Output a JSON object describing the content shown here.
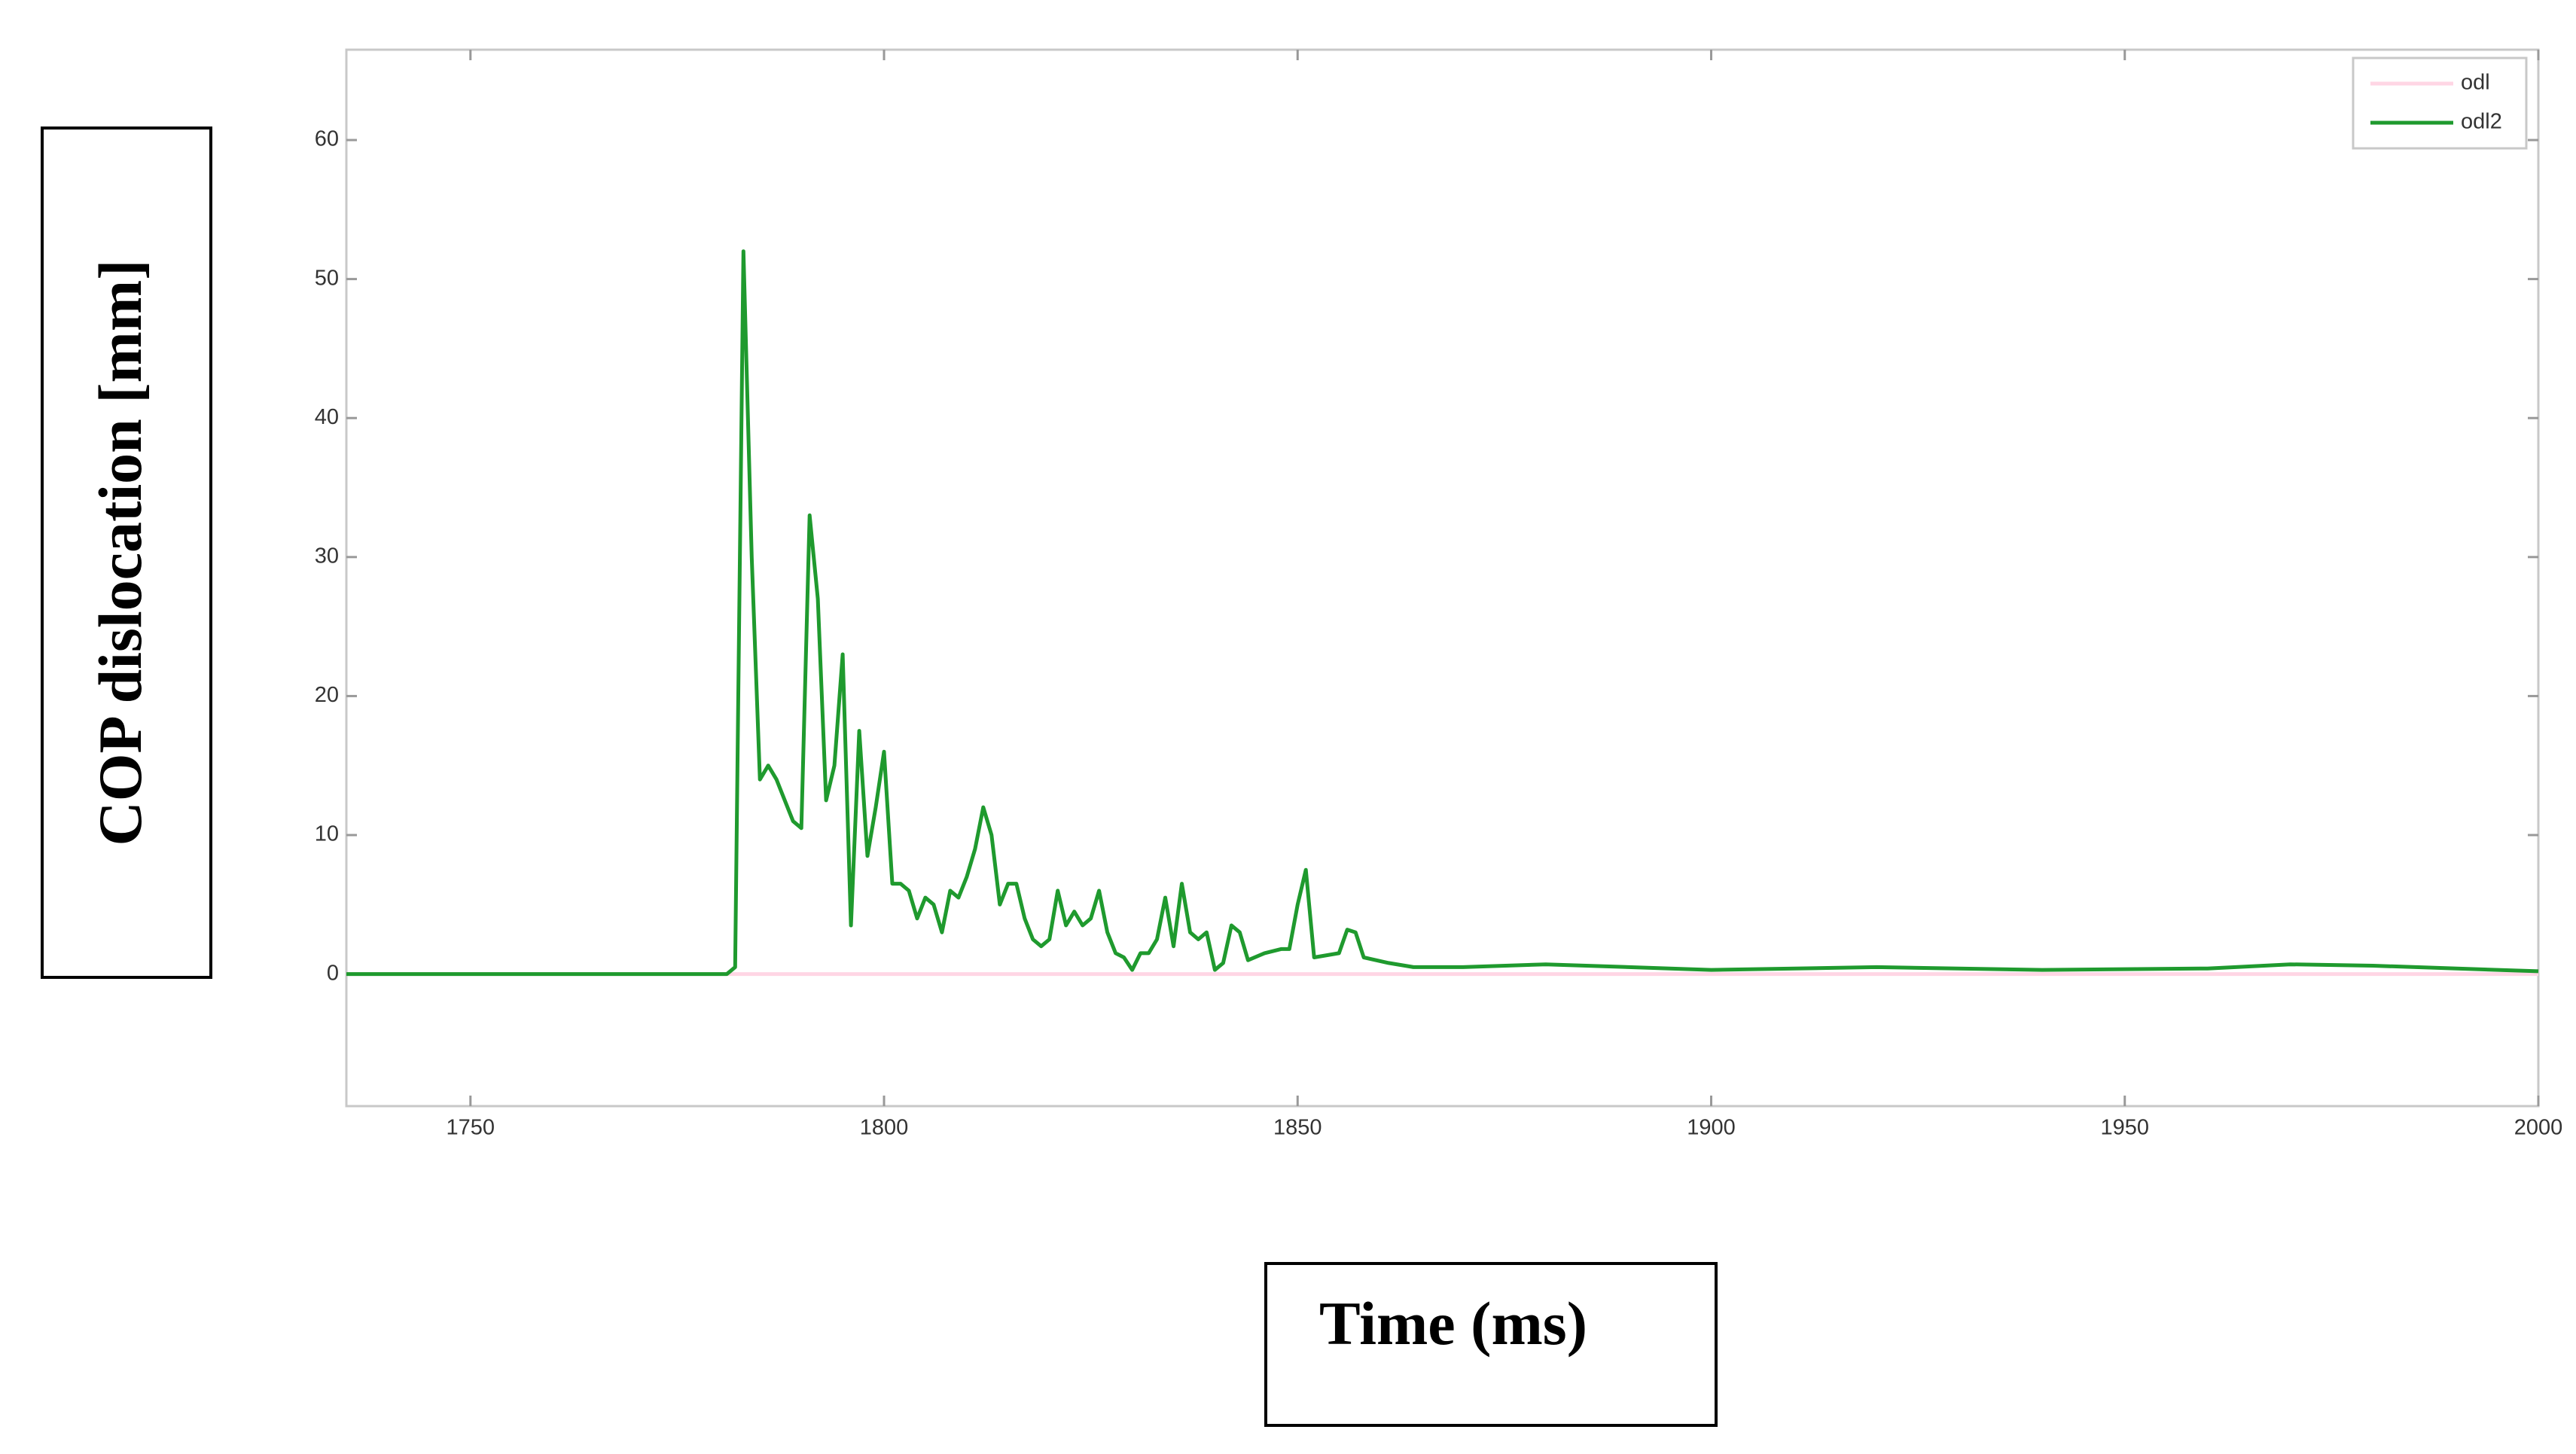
{
  "chart_data": {
    "type": "line",
    "xlabel": "Time (ms)",
    "ylabel": "COP dislocation  [mm]",
    "xlim": [
      1735,
      2000
    ],
    "xticks": [
      1750,
      1800,
      1850,
      1900,
      1950,
      2000
    ],
    "ylim": [
      -9.5,
      66.5
    ],
    "yticks": [
      0,
      10,
      20,
      30,
      40,
      50,
      60
    ],
    "grid": false,
    "legend": "upper right",
    "series": [
      {
        "name": "odl",
        "color": "#ffd6e4",
        "x": [
          1735,
          2000
        ],
        "values": [
          0,
          0
        ]
      },
      {
        "name": "odl2",
        "color": "#1f9a2e",
        "x": [
          1735,
          1781,
          1782,
          1783,
          1784,
          1785,
          1786,
          1787,
          1788,
          1789,
          1790,
          1791,
          1792,
          1793,
          1794,
          1795,
          1796,
          1797,
          1798,
          1799,
          1800,
          1801,
          1802,
          1803,
          1804,
          1805,
          1806,
          1807,
          1808,
          1809,
          1810,
          1811,
          1812,
          1813,
          1814,
          1815,
          1816,
          1817,
          1818,
          1819,
          1820,
          1821,
          1822,
          1823,
          1824,
          1825,
          1826,
          1827,
          1828,
          1829,
          1830,
          1831,
          1832,
          1833,
          1834,
          1835,
          1836,
          1837,
          1838,
          1839,
          1840,
          1841,
          1842,
          1843,
          1844,
          1846,
          1848,
          1849,
          1850,
          1851,
          1852,
          1855,
          1856,
          1857,
          1858,
          1861,
          1864,
          1870,
          1880,
          1890,
          1900,
          1920,
          1940,
          1960,
          1970,
          1980,
          2000
        ],
        "values": [
          0,
          0,
          0.5,
          52,
          30,
          14,
          15,
          14,
          12.5,
          11,
          10.5,
          33,
          27,
          12.5,
          15,
          23,
          3.5,
          17.5,
          8.5,
          12,
          16,
          6.5,
          6.5,
          6,
          4,
          5.5,
          5,
          3,
          6,
          5.5,
          7,
          9,
          12,
          10,
          5,
          6.5,
          6.5,
          4,
          2.5,
          2,
          2.5,
          6,
          3.5,
          4.5,
          3.5,
          4,
          6,
          3,
          1.5,
          1.2,
          0.3,
          1.5,
          1.5,
          2.5,
          5.5,
          2,
          6.5,
          3,
          2.5,
          3,
          0.3,
          0.8,
          3.5,
          3,
          1,
          1.5,
          1.8,
          1.8,
          5,
          7.5,
          1.2,
          1.5,
          3.2,
          3,
          1.2,
          0.8,
          0.5,
          0.5,
          0.7,
          0.5,
          0.3,
          0.5,
          0.3,
          0.4,
          0.7,
          0.6,
          0.2
        ]
      }
    ]
  }
}
